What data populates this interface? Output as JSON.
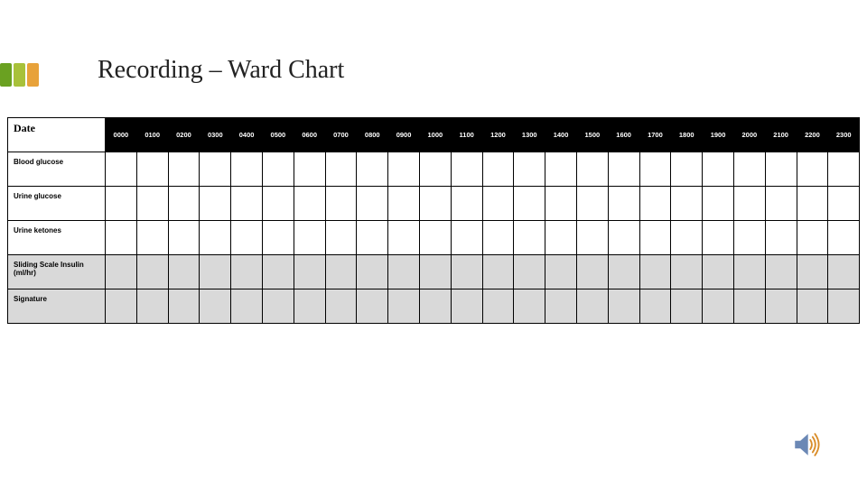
{
  "title": "Recording – Ward Chart",
  "accent_colors": [
    "#6aa121",
    "#a8c13a",
    "#e8a23a"
  ],
  "table": {
    "header_bg": "#000000",
    "header_fg": "#ffffff",
    "grey_bg": "#d9d9d9",
    "date_label": "Date",
    "hours": [
      "0000",
      "0100",
      "0200",
      "0300",
      "0400",
      "0500",
      "0600",
      "0700",
      "0800",
      "0900",
      "1000",
      "1100",
      "1200",
      "1300",
      "1400",
      "1500",
      "1600",
      "1700",
      "1800",
      "1900",
      "2000",
      "2100",
      "2200",
      "2300"
    ],
    "rows": [
      {
        "label": "Blood glucose",
        "grey": false
      },
      {
        "label": "Urine glucose",
        "grey": false
      },
      {
        "label": "Urine ketones",
        "grey": false
      },
      {
        "label": "Sliding Scale Insulin (ml/hr)",
        "grey": true
      },
      {
        "label": "Signature",
        "grey": true
      }
    ]
  },
  "icon": {
    "name": "speaker-icon",
    "fill": "#6b88b5",
    "wave_colors": [
      "#d98d2a",
      "#d98d2a",
      "#d98d2a"
    ]
  }
}
